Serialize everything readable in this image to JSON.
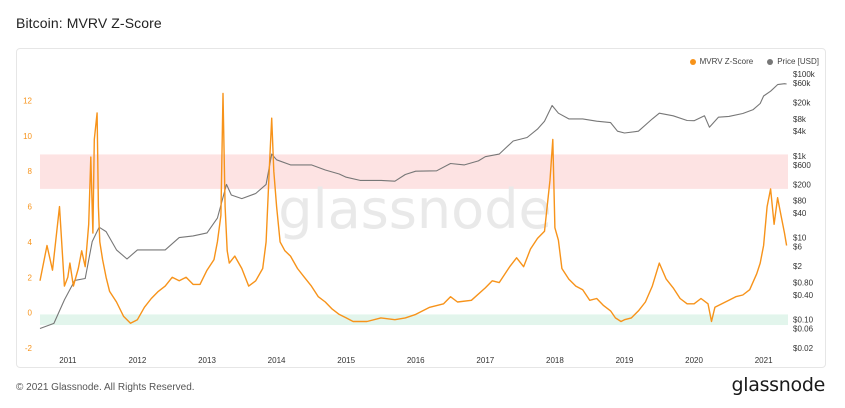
{
  "page": {
    "title": "Bitcoin: MVRV Z-Score",
    "copyright": "© 2021 Glassnode. All Rights Reserved.",
    "logo": "glassnode",
    "watermark": "glassnode"
  },
  "colors": {
    "zscore": "#f7931a",
    "price": "#777777",
    "red_band": "#fde3e3",
    "green_band": "#e2f5ec"
  },
  "chart_data": {
    "type": "line",
    "title": "Bitcoin: MVRV Z-Score",
    "x_range": [
      2010.6,
      2021.35
    ],
    "x_ticks": [
      {
        "label": "2011",
        "value": 2011
      },
      {
        "label": "2012",
        "value": 2012
      },
      {
        "label": "2013",
        "value": 2013
      },
      {
        "label": "2014",
        "value": 2014
      },
      {
        "label": "2015",
        "value": 2015
      },
      {
        "label": "2016",
        "value": 2016
      },
      {
        "label": "2017",
        "value": 2017
      },
      {
        "label": "2018",
        "value": 2018
      },
      {
        "label": "2019",
        "value": 2019
      },
      {
        "label": "2020",
        "value": 2020
      },
      {
        "label": "2021",
        "value": 2021
      }
    ],
    "y_left": {
      "range": [
        -2,
        13.5
      ],
      "ticks": [
        "-2",
        "0",
        "2",
        "4",
        "6",
        "8",
        "10",
        "12"
      ]
    },
    "y_right": {
      "scale": "log",
      "range": [
        0.02,
        100000
      ],
      "ticks": [
        {
          "label": "$100k",
          "value": 100000
        },
        {
          "label": "$60k",
          "value": 60000
        },
        {
          "label": "$20k",
          "value": 20000
        },
        {
          "label": "$8k",
          "value": 8000
        },
        {
          "label": "$4k",
          "value": 4000
        },
        {
          "label": "$1k",
          "value": 1000
        },
        {
          "label": "$600",
          "value": 600
        },
        {
          "label": "$200",
          "value": 200
        },
        {
          "label": "$80",
          "value": 80
        },
        {
          "label": "$40",
          "value": 40
        },
        {
          "label": "$10",
          "value": 10
        },
        {
          "label": "$6",
          "value": 6
        },
        {
          "label": "$2",
          "value": 2
        },
        {
          "label": "$0.80",
          "value": 0.8
        },
        {
          "label": "$0.40",
          "value": 0.4
        },
        {
          "label": "$0.10",
          "value": 0.1
        },
        {
          "label": "$0.06",
          "value": 0.06
        },
        {
          "label": "$0.02",
          "value": 0.02
        }
      ]
    },
    "bands": [
      {
        "name": "overvalued",
        "from": 7.0,
        "to": 8.95
      },
      {
        "name": "undervalued",
        "from": -0.7,
        "to": -0.1
      }
    ],
    "legend": {
      "placement": "top-right"
    },
    "series": [
      {
        "name": "MVRV Z-Score",
        "axis": "left",
        "x": [
          2010.6,
          2010.7,
          2010.78,
          2010.88,
          2010.95,
          2011.0,
          2011.03,
          2011.08,
          2011.15,
          2011.2,
          2011.25,
          2011.3,
          2011.33,
          2011.36,
          2011.38,
          2011.42,
          2011.44,
          2011.46,
          2011.5,
          2011.55,
          2011.6,
          2011.7,
          2011.8,
          2011.9,
          2012.0,
          2012.1,
          2012.2,
          2012.3,
          2012.4,
          2012.5,
          2012.6,
          2012.7,
          2012.8,
          2012.9,
          2013.0,
          2013.1,
          2013.15,
          2013.2,
          2013.23,
          2013.26,
          2013.29,
          2013.32,
          2013.4,
          2013.5,
          2013.6,
          2013.7,
          2013.8,
          2013.85,
          2013.9,
          2013.93,
          2013.96,
          2014.0,
          2014.05,
          2014.12,
          2014.2,
          2014.3,
          2014.4,
          2014.5,
          2014.6,
          2014.7,
          2014.8,
          2014.9,
          2015.0,
          2015.1,
          2015.3,
          2015.5,
          2015.7,
          2015.85,
          2016.0,
          2016.2,
          2016.4,
          2016.5,
          2016.6,
          2016.8,
          2017.0,
          2017.1,
          2017.2,
          2017.35,
          2017.45,
          2017.55,
          2017.65,
          2017.75,
          2017.85,
          2017.93,
          2017.97,
          2018.0,
          2018.05,
          2018.1,
          2018.2,
          2018.3,
          2018.4,
          2018.5,
          2018.6,
          2018.7,
          2018.8,
          2018.87,
          2018.95,
          2019.0,
          2019.1,
          2019.2,
          2019.3,
          2019.4,
          2019.5,
          2019.6,
          2019.7,
          2019.8,
          2019.9,
          2020.0,
          2020.1,
          2020.2,
          2020.25,
          2020.3,
          2020.4,
          2020.5,
          2020.6,
          2020.7,
          2020.8,
          2020.9,
          2020.95,
          2021.0,
          2021.05,
          2021.1,
          2021.15,
          2021.2,
          2021.25,
          2021.3,
          2021.33
        ],
        "values": [
          1.8,
          3.8,
          2.4,
          6.0,
          1.5,
          2.0,
          2.8,
          1.5,
          2.5,
          3.5,
          2.6,
          5.0,
          8.8,
          4.5,
          9.8,
          11.3,
          6.0,
          4.0,
          3.0,
          2.0,
          1.2,
          0.6,
          -0.2,
          -0.6,
          -0.4,
          0.3,
          0.8,
          1.2,
          1.5,
          2.0,
          1.8,
          2.0,
          1.6,
          1.6,
          2.4,
          3.0,
          4.0,
          5.5,
          12.4,
          6.0,
          3.5,
          2.8,
          3.2,
          2.5,
          1.5,
          1.8,
          2.5,
          4.0,
          8.5,
          11.0,
          8.0,
          6.0,
          4.0,
          3.5,
          3.2,
          2.5,
          2.0,
          1.5,
          0.9,
          0.6,
          0.2,
          -0.1,
          -0.3,
          -0.5,
          -0.5,
          -0.3,
          -0.4,
          -0.3,
          -0.1,
          0.3,
          0.5,
          0.9,
          0.6,
          0.7,
          1.4,
          1.8,
          1.7,
          2.6,
          3.1,
          2.6,
          3.6,
          4.2,
          4.6,
          7.5,
          9.8,
          4.8,
          4.1,
          2.5,
          1.9,
          1.5,
          1.3,
          0.7,
          0.8,
          0.4,
          0.1,
          -0.3,
          -0.5,
          -0.4,
          -0.3,
          0.1,
          0.6,
          1.5,
          2.8,
          1.9,
          1.4,
          0.8,
          0.5,
          0.5,
          0.8,
          0.5,
          -0.5,
          0.3,
          0.5,
          0.7,
          0.9,
          1.0,
          1.3,
          2.2,
          2.8,
          3.8,
          6.0,
          7.0,
          5.0,
          6.5,
          5.5,
          4.5,
          3.8
        ]
      },
      {
        "name": "Price [USD]",
        "axis": "right",
        "x": [
          2010.6,
          2010.8,
          2010.95,
          2011.1,
          2011.25,
          2011.35,
          2011.45,
          2011.55,
          2011.7,
          2011.85,
          2012.0,
          2012.2,
          2012.4,
          2012.6,
          2012.8,
          2013.0,
          2013.15,
          2013.28,
          2013.35,
          2013.5,
          2013.7,
          2013.85,
          2013.93,
          2014.0,
          2014.2,
          2014.5,
          2014.7,
          2014.9,
          2015.0,
          2015.2,
          2015.5,
          2015.7,
          2015.85,
          2016.0,
          2016.3,
          2016.5,
          2016.7,
          2016.9,
          2017.0,
          2017.2,
          2017.4,
          2017.6,
          2017.75,
          2017.85,
          2017.96,
          2018.05,
          2018.2,
          2018.4,
          2018.6,
          2018.8,
          2018.9,
          2019.0,
          2019.2,
          2019.4,
          2019.5,
          2019.7,
          2019.9,
          2020.0,
          2020.15,
          2020.22,
          2020.35,
          2020.5,
          2020.7,
          2020.85,
          2020.95,
          2021.0,
          2021.1,
          2021.2,
          2021.3,
          2021.33
        ],
        "values": [
          0.06,
          0.08,
          0.3,
          0.9,
          1.0,
          8.0,
          18.0,
          14.0,
          5.0,
          3.0,
          5.0,
          5.0,
          5.0,
          10.0,
          11.0,
          13.0,
          30.0,
          200.0,
          110.0,
          90.0,
          120.0,
          200.0,
          1100.0,
          800.0,
          600.0,
          600.0,
          450.0,
          360.0,
          300.0,
          250.0,
          250.0,
          240.0,
          350.0,
          420.0,
          430.0,
          650.0,
          600.0,
          750.0,
          950.0,
          1100.0,
          2300.0,
          2800.0,
          4500.0,
          7000.0,
          17000.0,
          11000.0,
          8000.0,
          8000.0,
          7000.0,
          6500.0,
          4000.0,
          3600.0,
          4000.0,
          8000.0,
          11000.0,
          9500.0,
          7300.0,
          7200.0,
          9500.0,
          5000.0,
          8800.0,
          9200.0,
          10800.0,
          13500.0,
          19000.0,
          29000.0,
          38000.0,
          55000.0,
          58000.0,
          57000.0
        ]
      }
    ]
  }
}
